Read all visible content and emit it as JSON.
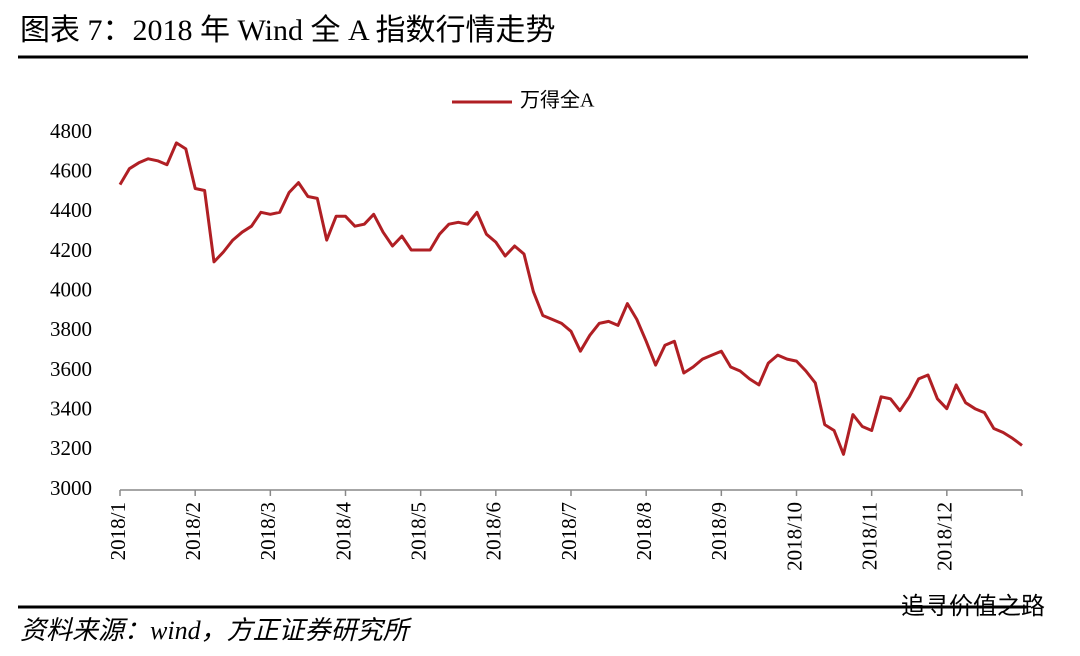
{
  "title": "图表 7：2018 年 Wind 全 A 指数行情走势",
  "source": "资料来源：wind，方正证券研究所",
  "watermark": "追寻价值之路",
  "chart_data": {
    "type": "line",
    "categories": [
      "2018/1",
      null,
      null,
      null,
      null,
      null,
      null,
      null,
      "2018/2",
      null,
      null,
      null,
      null,
      null,
      null,
      null,
      "2018/3",
      null,
      null,
      null,
      null,
      null,
      null,
      null,
      "2018/4",
      null,
      null,
      null,
      null,
      null,
      null,
      null,
      "2018/5",
      null,
      null,
      null,
      null,
      null,
      null,
      null,
      "2018/6",
      null,
      null,
      null,
      null,
      null,
      null,
      null,
      "2018/7",
      null,
      null,
      null,
      null,
      null,
      null,
      null,
      "2018/8",
      null,
      null,
      null,
      null,
      null,
      null,
      null,
      "2018/9",
      null,
      null,
      null,
      null,
      null,
      null,
      null,
      "2018/10",
      null,
      null,
      null,
      null,
      null,
      null,
      null,
      "2018/11",
      null,
      null,
      null,
      null,
      null,
      null,
      null,
      "2018/12",
      null,
      null,
      null,
      null,
      null,
      null,
      null,
      null
    ],
    "series": [
      {
        "name": "万得全A",
        "color": "#b01f24",
        "values": [
          4540,
          4620,
          4650,
          4670,
          4660,
          4640,
          4750,
          4720,
          4520,
          4510,
          4150,
          4200,
          4260,
          4300,
          4330,
          4400,
          4390,
          4400,
          4500,
          4550,
          4480,
          4470,
          4260,
          4380,
          4380,
          4330,
          4340,
          4390,
          4300,
          4230,
          4280,
          4210,
          4210,
          4210,
          4290,
          4340,
          4350,
          4340,
          4400,
          4290,
          4250,
          4180,
          4230,
          4190,
          4000,
          3880,
          3860,
          3840,
          3800,
          3700,
          3780,
          3840,
          3850,
          3830,
          3940,
          3860,
          3750,
          3630,
          3730,
          3750,
          3590,
          3620,
          3660,
          3680,
          3700,
          3620,
          3600,
          3560,
          3530,
          3640,
          3680,
          3660,
          3650,
          3600,
          3540,
          3330,
          3300,
          3180,
          3380,
          3320,
          3300,
          3470,
          3460,
          3400,
          3470,
          3560,
          3580,
          3460,
          3410,
          3530,
          3440,
          3410,
          3390,
          3310,
          3290,
          3260,
          3225
        ]
      }
    ],
    "ylim": [
      3000,
      4800
    ],
    "yticks": [
      3000,
      3200,
      3400,
      3600,
      3800,
      4000,
      4200,
      4400,
      4600,
      4800
    ],
    "legend": "top"
  }
}
